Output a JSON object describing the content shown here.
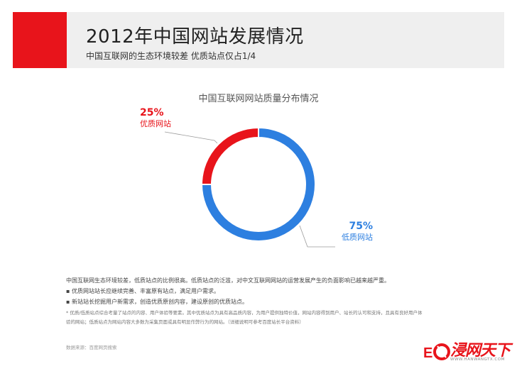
{
  "header": {
    "title": "2012年中国网站发展情况",
    "subtitle": "中国互联网的生态环境较差  优质站点仅占1/4"
  },
  "chart_data": {
    "type": "pie",
    "variant": "donut",
    "title": "中国互联网网站质量分布情况",
    "slices": [
      {
        "name": "优质网站",
        "value": 25,
        "label": "25%",
        "color": "#e8141b"
      },
      {
        "name": "低质网站",
        "value": 75,
        "label": "75%",
        "color": "#2d7fe0"
      }
    ],
    "start": "top",
    "direction": "counter-clockwise"
  },
  "notes": {
    "intro": "中国互联网生态环境较差，低质站点的比例很高。低质站点的泛滥，对中文互联网网站的运营发展产生的负面影响已越来越严重。",
    "bullets": [
      "优质网站站长应继续完善、丰富原有站点，满足用户需求。",
      "新站站长挖掘用户新需求，创造优质原创内容，建设原创的优质站点。"
    ],
    "footnote_lines": [
      "* 优质/低质站点综合考量了站点的内容、用户体验等要素。其中优质站点为具有高品质内容，为用户提供独特价值，网站内容得到用户、站长的认可和支持，且具有良好用户体",
      "验的网站；低质站点为网站内容大多数为采集页面或具有明显作弊行为的网站。（详细说明可参考百度站长平台资料）"
    ]
  },
  "source": "数据来源：百度网页搜索",
  "logo": {
    "text": "浸网天下",
    "url": "WWW.HANWANGTX.COM"
  }
}
